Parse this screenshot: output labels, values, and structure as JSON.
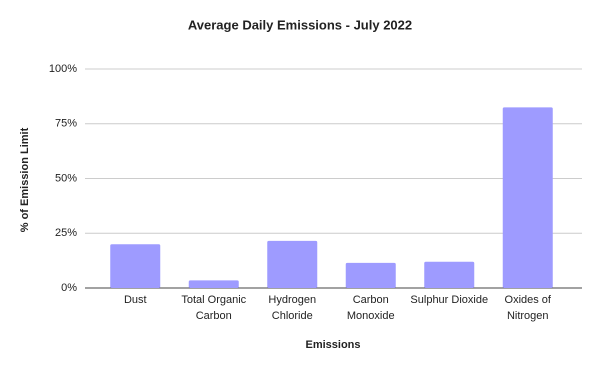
{
  "chart_data": {
    "type": "bar",
    "title": "Average Daily Emissions - July 2022",
    "x_label": "Emissions",
    "y_label": "% of Emission Limit",
    "categories": [
      "Dust",
      "Total Organic Carbon",
      "Hydrogen Chloride",
      "Carbon Monoxide",
      "Sulphur Dioxide",
      "Oxides of Nitrogen"
    ],
    "values": [
      20,
      3.5,
      21.5,
      11.5,
      12,
      82.5
    ],
    "color": "#9e9bff",
    "ylim": [
      0,
      100
    ],
    "yticks": [
      {
        "value": 0,
        "label": "0%"
      },
      {
        "value": 25,
        "label": "25%"
      },
      {
        "value": 50,
        "label": "50%"
      },
      {
        "value": 75,
        "label": "75%"
      },
      {
        "value": 100,
        "label": "100%"
      }
    ],
    "grid": true
  }
}
